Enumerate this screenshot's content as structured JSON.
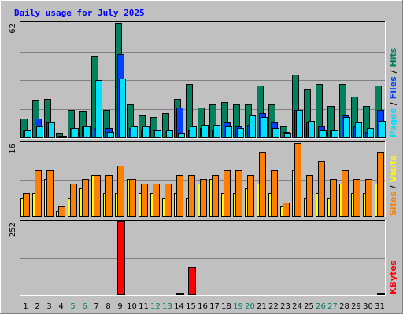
{
  "title": "Daily usage for July 2025",
  "colors": {
    "background": "#c0c0c0",
    "title": "#0000ff",
    "hits": "#00805c",
    "files": "#0040ff",
    "pages": "#00e0ff",
    "visits": "#ffff00",
    "sites": "#ff8000",
    "kbytes": "#ff0000",
    "weekend": "#00805c",
    "weekday": "#000000",
    "grid": "#808080"
  },
  "chart_data": {
    "type": "bar",
    "x": [
      "1",
      "2",
      "3",
      "4",
      "5",
      "6",
      "7",
      "8",
      "9",
      "10",
      "11",
      "12",
      "13",
      "14",
      "15",
      "16",
      "17",
      "18",
      "19",
      "20",
      "21",
      "22",
      "23",
      "24",
      "25",
      "26",
      "27",
      "28",
      "29",
      "30",
      "31"
    ],
    "weekend_days": [
      "5",
      "6",
      "12",
      "13",
      "19",
      "20",
      "26",
      "27"
    ],
    "panels": [
      {
        "id": "top",
        "ymax": 62,
        "ymax_label": "62",
        "axis_labels": [
          {
            "key": "pages",
            "text": "Pages",
            "color": "#00e0ff"
          },
          {
            "key": "sep1",
            "text": " / ",
            "color": "#000000"
          },
          {
            "key": "files",
            "text": "Files",
            "color": "#0040ff"
          },
          {
            "key": "sep2",
            "text": " / ",
            "color": "#000000"
          },
          {
            "key": "hits",
            "text": "Hits",
            "color": "#00805c"
          }
        ],
        "series": [
          {
            "key": "hits",
            "name": "Hits",
            "color": "#00805c",
            "values": [
              10,
              20,
              21,
              2,
              15,
              14,
              44,
              15,
              62,
              18,
              12,
              11,
              13,
              21,
              29,
              16,
              18,
              19,
              18,
              18,
              28,
              18,
              6,
              34,
              26,
              29,
              17,
              29,
              22,
              17,
              28
            ]
          },
          {
            "key": "files",
            "name": "Files",
            "color": "#0040ff",
            "values": [
              4,
              10,
              8,
              1,
              5,
              6,
              5,
              5,
              45,
              5,
              4,
              4,
              3,
              16,
              4,
              5,
              4,
              8,
              6,
              7,
              13,
              8,
              3,
              15,
              8,
              6,
              4,
              12,
              6,
              3,
              15
            ]
          },
          {
            "key": "pages",
            "name": "Pages",
            "color": "#00e0ff",
            "values": [
              4,
              6,
              8,
              1,
              5,
              6,
              31,
              3,
              32,
              6,
              6,
              4,
              4,
              2,
              6,
              7,
              7,
              6,
              5,
              12,
              11,
              5,
              2,
              15,
              9,
              4,
              4,
              11,
              8,
              5,
              9
            ]
          }
        ]
      },
      {
        "id": "middle",
        "ymax": 16,
        "ymax_label": "16",
        "axis_labels": [
          {
            "key": "sites",
            "text": "Sites",
            "color": "#ff8000"
          },
          {
            "key": "sep",
            "text": " / ",
            "color": "#000000"
          },
          {
            "key": "visits",
            "text": "Visits",
            "color": "#ffff00"
          }
        ],
        "series": [
          {
            "key": "visits",
            "name": "Visits",
            "color": "#ffff00",
            "values": [
              4,
              5,
              8,
              1,
              4,
              6,
              9,
              5,
              5,
              8,
              5,
              5,
              4,
              5,
              4,
              7,
              8,
              5,
              5,
              6,
              7,
              5,
              2,
              10,
              4,
              5,
              4,
              7,
              5,
              5,
              7
            ]
          },
          {
            "key": "sites",
            "name": "Sites",
            "color": "#ff8000",
            "values": [
              5,
              10,
              10,
              2,
              7,
              8,
              9,
              9,
              11,
              8,
              7,
              7,
              7,
              9,
              9,
              8,
              9,
              10,
              10,
              9,
              14,
              10,
              3,
              16,
              9,
              12,
              8,
              10,
              8,
              8,
              14
            ]
          }
        ]
      },
      {
        "id": "bottom",
        "ymax": 252,
        "ymax_label": "252",
        "axis_labels": [
          {
            "key": "kbytes",
            "text": "KBytes",
            "color": "#ff0000"
          }
        ],
        "series": [
          {
            "key": "kbytes",
            "name": "KBytes",
            "color": "#ff0000",
            "values": [
              0,
              0,
              0,
              0,
              0,
              0,
              0,
              0,
              252,
              0,
              0,
              0,
              0,
              6,
              95,
              0,
              0,
              0,
              0,
              0,
              0,
              0,
              0,
              0,
              0,
              0,
              0,
              0,
              0,
              0,
              6
            ]
          }
        ]
      }
    ]
  }
}
